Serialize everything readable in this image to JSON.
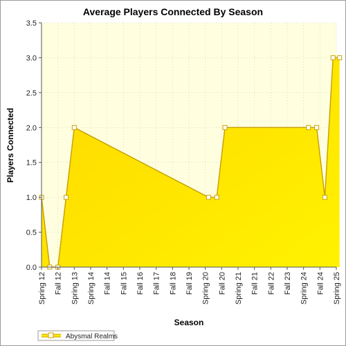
{
  "chart_data": {
    "type": "area",
    "title": "Average Players Connected By Season",
    "xlabel": "Season",
    "ylabel": "Players Connected",
    "ylim": [
      0,
      3.5
    ],
    "yticks": [
      "0.0",
      "0.5",
      "1.0",
      "1.5",
      "2.0",
      "2.5",
      "3.0",
      "3.5"
    ],
    "categories": [
      "Spring 12",
      "Fall 12",
      "Spring 13",
      "Spring 14",
      "Fall 14",
      "Fall 15",
      "Fall 16",
      "Fall 17",
      "Fall 18",
      "Fall 19",
      "Spring 20",
      "Fall 20",
      "Spring 21",
      "Fall 21",
      "Fall 22",
      "Fall 23",
      "Spring 24",
      "Fall 24",
      "Spring 25"
    ],
    "series": [
      {
        "name": "Abysmal Realms",
        "points": [
          {
            "x": 0,
            "y": 1.0
          },
          {
            "x": 0.5,
            "y": 0.0
          },
          {
            "x": 1.0,
            "y": 0.0
          },
          {
            "x": 1.5,
            "y": 1.0
          },
          {
            "x": 2.0,
            "y": 2.0
          },
          {
            "x": 10.2,
            "y": 1.0
          },
          {
            "x": 10.7,
            "y": 1.0
          },
          {
            "x": 11.2,
            "y": 2.0
          },
          {
            "x": 16.3,
            "y": 2.0
          },
          {
            "x": 16.8,
            "y": 2.0
          },
          {
            "x": 17.3,
            "y": 1.0
          },
          {
            "x": 17.8,
            "y": 3.0
          },
          {
            "x": 18.2,
            "y": 3.0
          }
        ]
      }
    ],
    "grid": true,
    "legend": "bottom-left",
    "colors": {
      "fill": "#ffe600",
      "line": "#c9a200",
      "marker": "#ffffff",
      "plot_bg": "#ffffe0",
      "grid": "#c8c8a8"
    }
  }
}
